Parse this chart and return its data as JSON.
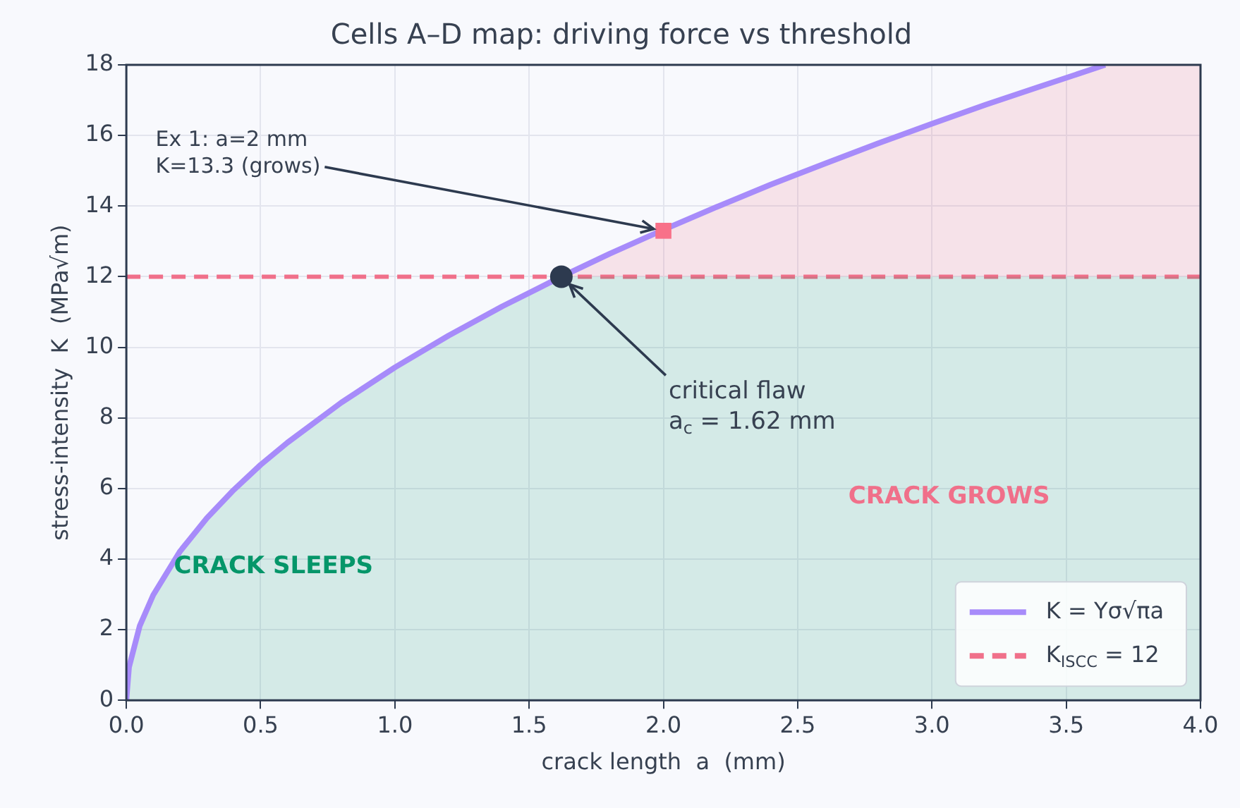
{
  "chart_data": {
    "type": "line",
    "title": "Cells A–D map: driving force vs threshold",
    "xlabel": "crack length  a  (mm)",
    "ylabel": "stress-intensity  K  (MPa√m)",
    "series": [
      {
        "type": "area",
        "color": "#059669",
        "x": [
          0,
          0.01,
          0.05,
          0.1,
          0.2,
          0.3,
          0.4,
          0.5,
          0.6,
          0.8,
          1.0,
          1.2,
          1.4,
          1.62,
          1.8,
          2.0,
          2.2,
          2.4,
          2.6,
          2.8,
          3.0,
          3.2,
          3.4,
          3.645,
          4.0
        ],
        "values": [
          0,
          0.94,
          2.11,
          2.98,
          4.22,
          5.16,
          5.96,
          6.67,
          7.3,
          8.43,
          9.43,
          10.33,
          11.16,
          12.0,
          12.0,
          12.0,
          12.0,
          12.0,
          12.0,
          12.0,
          12.0,
          12.0,
          12.0,
          12.0,
          12.0
        ]
      },
      {
        "type": "area",
        "color": "#f0708a",
        "x": [
          1.62,
          1.8,
          2.0,
          2.2,
          2.4,
          2.6,
          2.8,
          3.0,
          3.2,
          3.4,
          3.645,
          4.0
        ],
        "values": [
          12.0,
          12.65,
          13.33,
          13.98,
          14.61,
          15.2,
          15.78,
          16.33,
          16.87,
          17.38,
          18.0,
          18.0
        ]
      },
      {
        "name": "K = Yσ√πa",
        "type": "line",
        "color": "#a78bfa",
        "marker": "none",
        "x": [
          0,
          0.01,
          0.05,
          0.1,
          0.2,
          0.3,
          0.4,
          0.5,
          0.6,
          0.8,
          1.0,
          1.2,
          1.4,
          1.62,
          1.8,
          2.0,
          2.2,
          2.4,
          2.6,
          2.8,
          3.0,
          3.2,
          3.4,
          3.645
        ],
        "values": [
          0,
          0.94,
          2.11,
          2.98,
          4.22,
          5.16,
          5.96,
          6.67,
          7.3,
          8.43,
          9.43,
          10.33,
          11.16,
          12.0,
          12.65,
          13.33,
          13.98,
          14.61,
          15.2,
          15.78,
          16.33,
          16.87,
          17.38,
          18.0
        ]
      },
      {
        "type": "scatter",
        "color": "#f87189",
        "marker": "square",
        "x": [
          2.0
        ],
        "values": [
          13.3
        ]
      },
      {
        "type": "scatter",
        "color": "#2d3a4f",
        "marker": "circle",
        "x": [
          1.62
        ],
        "values": [
          12.0
        ]
      }
    ],
    "ref_lines": [
      {
        "axis": "y",
        "value": 12,
        "label": "K$_{ISCC}$ = 12",
        "color": "#f0708a",
        "line_style": "dashed"
      }
    ],
    "annotations": [
      "CRACK SLEEPS",
      "CRACK GROWS",
      {
        "text": "Ex 1: a=2 mm\nK=13.3 (grows)",
        "x": 2.0,
        "y": 13.3
      },
      {
        "text": "critical flaw\na$_{c}$ = 1.62 mm",
        "x": 1.62,
        "y": 12.0
      }
    ],
    "xlim": [
      0,
      4
    ],
    "xticks": [
      {
        "value": 0,
        "label": "0.0"
      },
      {
        "value": 0.5,
        "label": "0.5"
      },
      {
        "value": 1,
        "label": "1.0"
      },
      {
        "value": 1.5,
        "label": "1.5"
      },
      {
        "value": 2,
        "label": "2.0"
      },
      {
        "value": 2.5,
        "label": "2.5"
      },
      {
        "value": 3,
        "label": "3.0"
      },
      {
        "value": 3.5,
        "label": "3.5"
      },
      {
        "value": 4,
        "label": "4.0"
      }
    ],
    "ylim": [
      0,
      18
    ],
    "yticks": [
      0,
      2,
      4,
      6,
      8,
      10,
      12,
      14,
      16,
      18
    ],
    "grid": true,
    "legend": "bottom right"
  }
}
